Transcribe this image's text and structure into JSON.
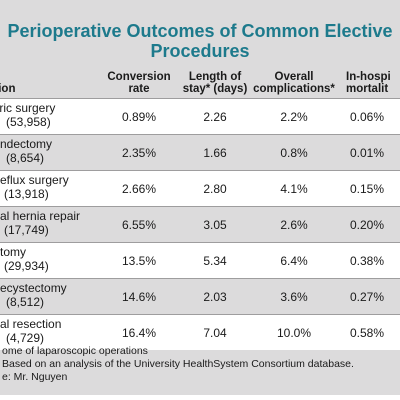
{
  "title": {
    "line1": "Perioperative Outcomes of Common Elective",
    "line2": "Procedures"
  },
  "table": {
    "headers": {
      "procedure": "ation",
      "conversion": [
        "Conversion",
        "rate"
      ],
      "los": [
        "Length of",
        "stay* (days)"
      ],
      "complications": [
        "Overall",
        "complications*"
      ],
      "mortality": [
        "In-hospi",
        "mortalit"
      ]
    },
    "rows": [
      {
        "name": "tric surgery",
        "count": "53,958)",
        "conversion": "0.89%",
        "los": "2.26",
        "complications": "2.2%",
        "mortality": "0.06%"
      },
      {
        "name": "ndectomy",
        "count": "8,654)",
        "conversion": "2.35%",
        "los": "1.66",
        "complications": "0.8%",
        "mortality": "0.01%"
      },
      {
        "name": "eflux surgery",
        "count": "13,918)",
        "conversion": "2.66%",
        "los": "2.80",
        "complications": "4.1%",
        "mortality": "0.15%"
      },
      {
        "name": "al hernia repair",
        "count": "17,749)",
        "conversion": "6.55%",
        "los": "3.05",
        "complications": "2.6%",
        "mortality": "0.20%"
      },
      {
        "name": "tomy",
        "count": "29,934)",
        "conversion": "13.5%",
        "los": "5.34",
        "complications": "6.4%",
        "mortality": "0.38%"
      },
      {
        "name": "ecystectomy",
        "count": "8,512)",
        "conversion": "14.6%",
        "los": "2.03",
        "complications": "3.6%",
        "mortality": "0.27%"
      },
      {
        "name": "al resection",
        "count": "4,729)",
        "conversion": "16.4%",
        "los": "7.04",
        "complications": "10.0%",
        "mortality": "0.58%"
      }
    ]
  },
  "footnotes": {
    "line1": "ome of laparoscopic operations",
    "line2": "Based on an analysis of the University HealthSystem Consortium database.",
    "line3": "e: Mr. Nguyen"
  }
}
